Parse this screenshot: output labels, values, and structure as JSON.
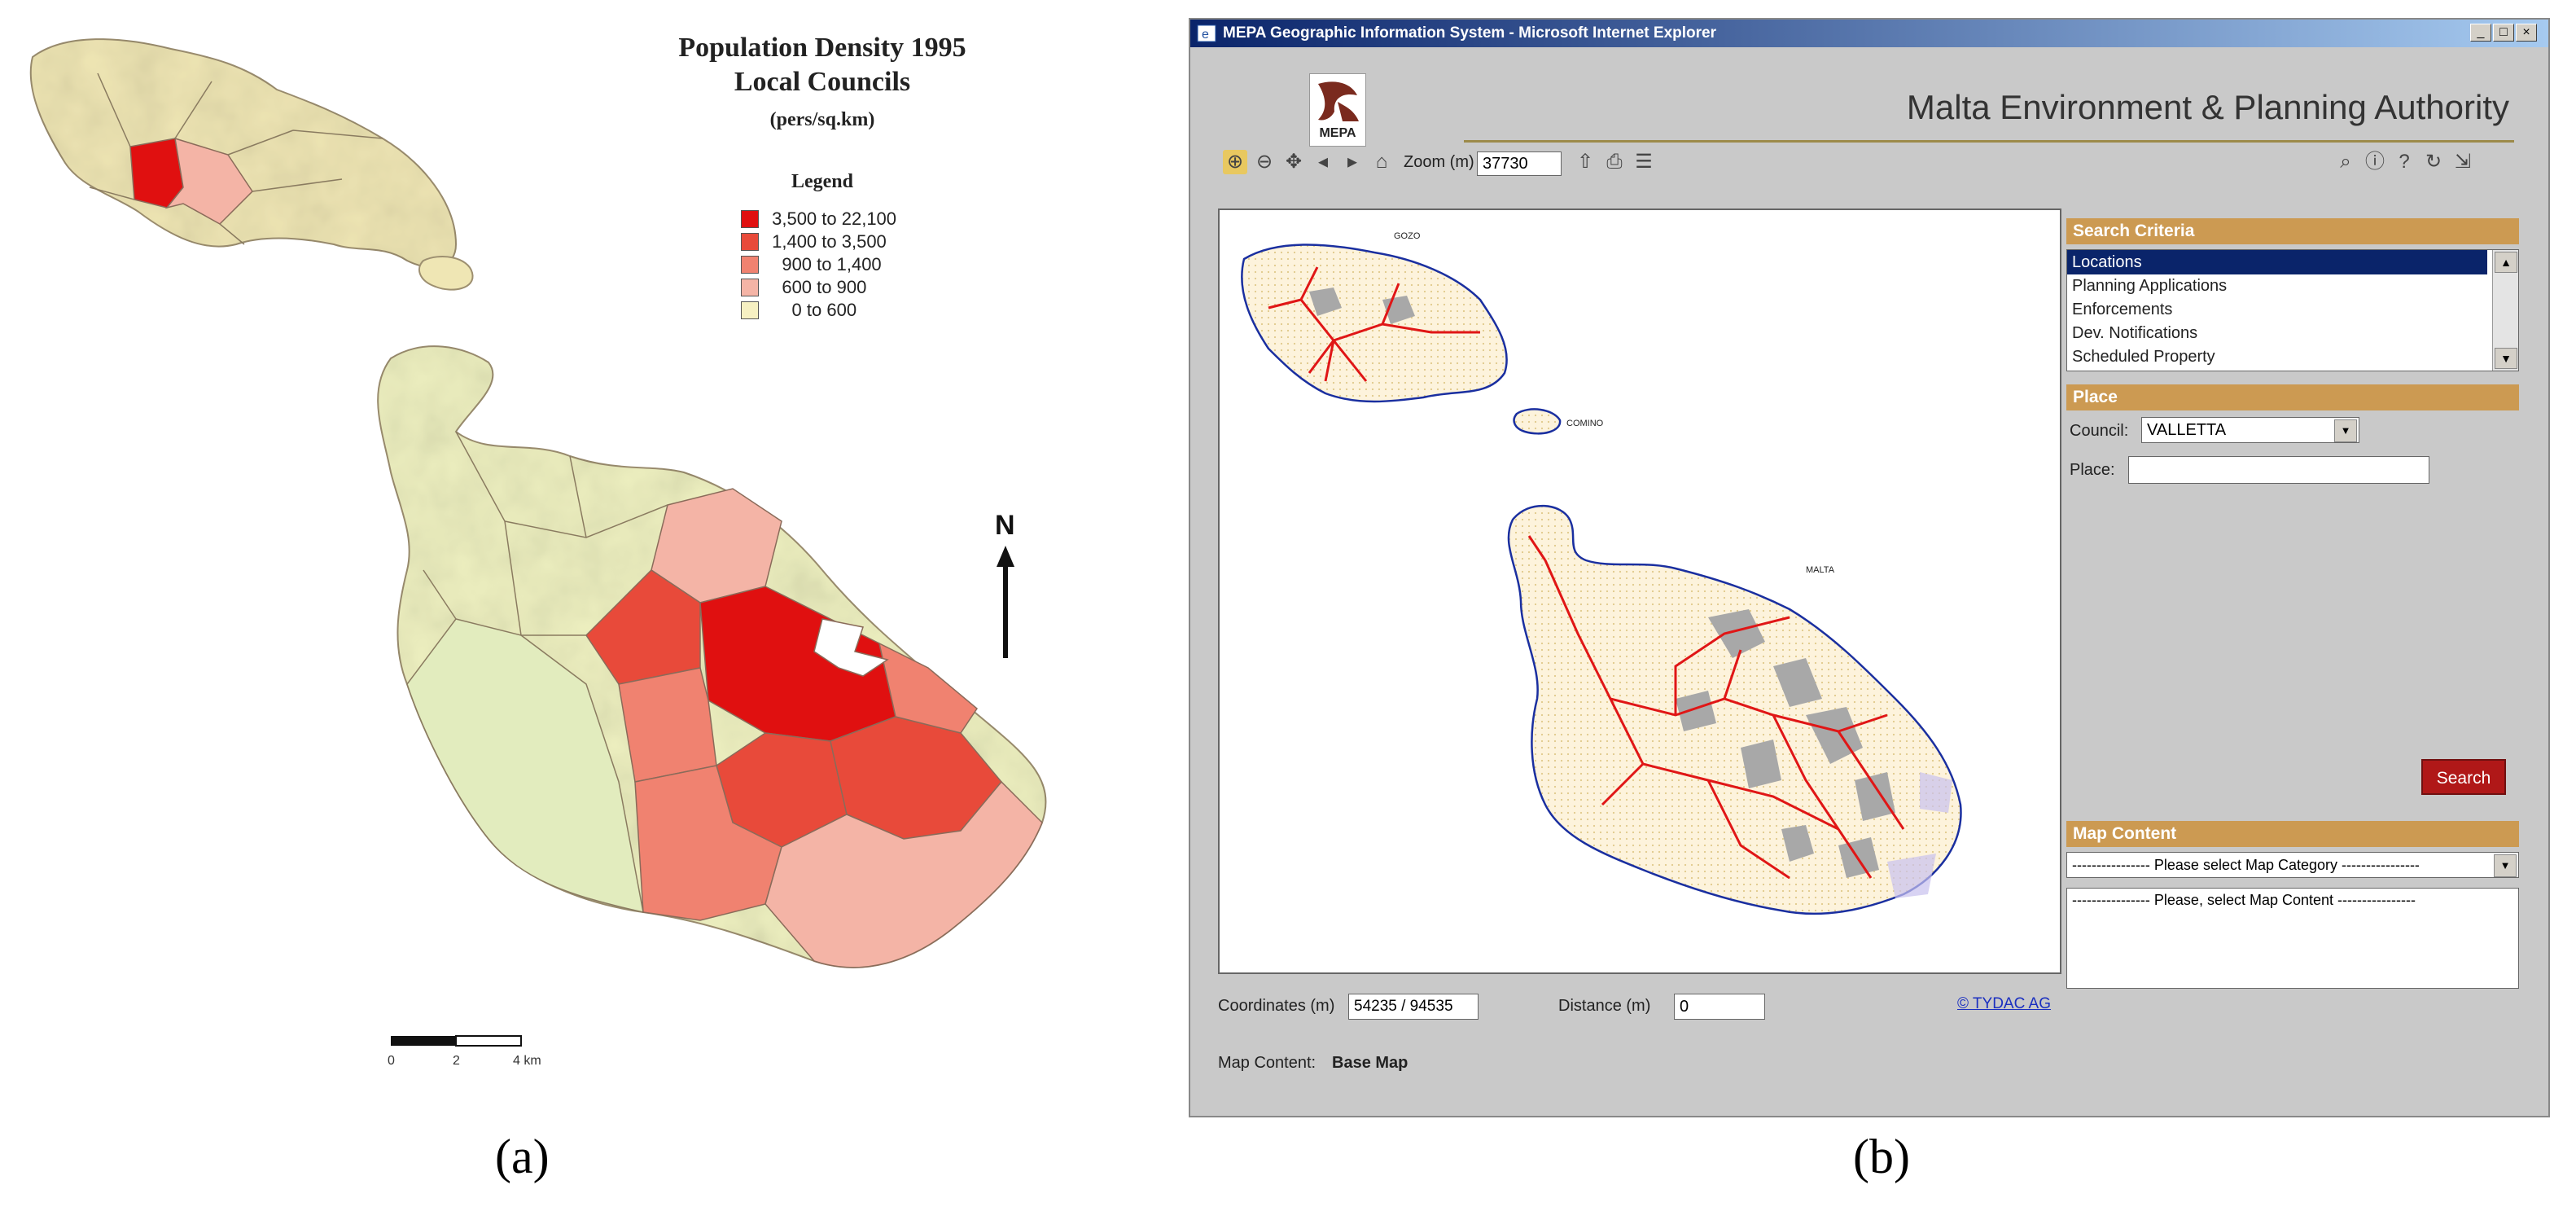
{
  "panel_a": {
    "title_line1": "Population Density 1995",
    "title_line2": "Local Councils",
    "title_line3": "(pers/sq.km)",
    "legend_title": "Legend",
    "legend": [
      {
        "from": "3,500",
        "to": "22,100",
        "color": "#e01010"
      },
      {
        "from": "1,400",
        "to": "3,500",
        "color": "#e84a3a"
      },
      {
        "from": "900",
        "to": "1,400",
        "color": "#f08270"
      },
      {
        "from": "600",
        "to": "900",
        "color": "#f4b4a6"
      },
      {
        "from": "0",
        "to": "600",
        "color": "#f6f0c2"
      }
    ],
    "legend_connector": "to",
    "north_label": "N",
    "scale_ticks": [
      "0",
      "2",
      "4 km"
    ],
    "caption": "(a)"
  },
  "panel_b": {
    "window_title": "MEPA Geographic Information System - Microsoft Internet Explorer",
    "logo_text": "MEPA",
    "authority": "Malta Environment & Planning Authority",
    "zoom_label": "Zoom (m)",
    "zoom_value": "37730",
    "map_labels": {
      "gozo": "GOZO",
      "comino": "COMINO",
      "malta": "MALTA"
    },
    "search_criteria": {
      "header": "Search Criteria",
      "items": [
        "Locations",
        "Planning Applications",
        "Enforcements",
        "Dev. Notifications",
        "Scheduled Property"
      ],
      "selected": "Locations"
    },
    "place": {
      "header": "Place",
      "council_label": "Council:",
      "council_value": "VALLETTA",
      "place_label": "Place:",
      "place_value": ""
    },
    "search_button": "Search",
    "map_content": {
      "header": "Map Content",
      "category_placeholder": "---------------- Please select Map Category ----------------",
      "content_placeholder": "---------------- Please, select Map Content ----------------"
    },
    "coordinates_label": "Coordinates (m)",
    "coordinates_value": "54235 / 94535",
    "distance_label": "Distance (m)",
    "distance_value": "0",
    "credit": "© TYDAC AG",
    "map_content_label": "Map Content:",
    "map_content_value": "Base Map",
    "caption": "(b)"
  }
}
